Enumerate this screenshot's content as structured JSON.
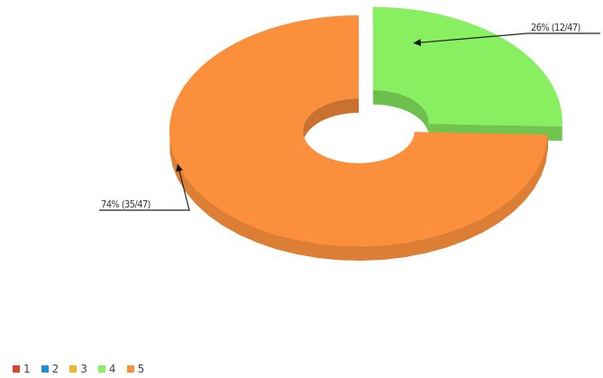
{
  "chart_data": {
    "type": "pie",
    "donut": true,
    "three_d": true,
    "slices": [
      {
        "label": "1",
        "value": 0,
        "color": "#d9472b"
      },
      {
        "label": "2",
        "value": 0,
        "color": "#1f8fd6"
      },
      {
        "label": "3",
        "value": 0,
        "color": "#f0b429"
      },
      {
        "label": "4",
        "value": 12,
        "color": "#88f060",
        "callout": "26% (12/47)"
      },
      {
        "label": "5",
        "value": 35,
        "color": "#fb8f3c",
        "callout": "74% (35/47)"
      }
    ],
    "total": 47,
    "legend_position": "bottom-left"
  }
}
